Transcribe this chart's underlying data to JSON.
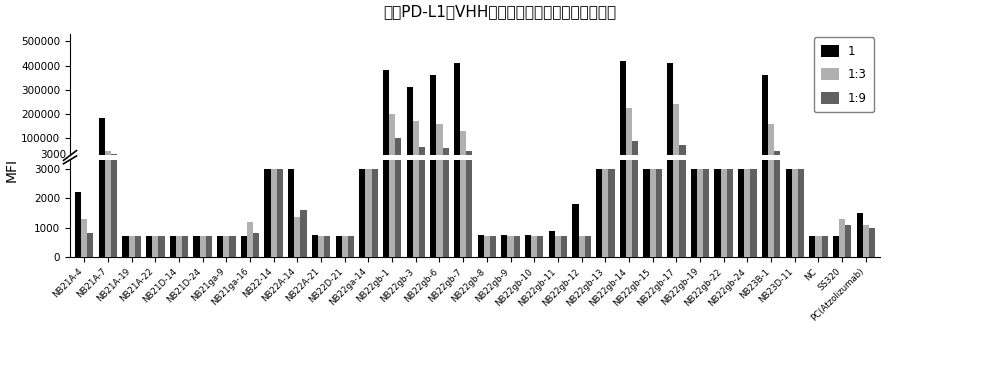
{
  "title": "结合PD-L1的VHH抗体裂解液样本结合亲和力筛选",
  "ylabel": "MFI",
  "categories": [
    "NB21A-4",
    "NB21A-7",
    "NB21A-19",
    "NB21A-22",
    "NB21D-14",
    "NB21D-24",
    "NB21ga-9",
    "NB21ga-16",
    "NB22-14",
    "NB22A-14",
    "NB22A-21",
    "NB22D-21",
    "NB22ga-14",
    "NB22gb-1",
    "NB22gb-3",
    "NB22gb-6",
    "NB22gb-7",
    "NB22gb-8",
    "NB22gb-9",
    "NB22gb-10",
    "NB22gb-11",
    "NB22gb-12",
    "NB22gb-13",
    "NB22gb-14",
    "NB22gb-15",
    "NB22gb-17",
    "NB22gb-19",
    "NB22gb-22",
    "NB22gb-24",
    "NB23B-1",
    "NB23D-11",
    "NC",
    "SS320",
    "PC(Atzolizumab)"
  ],
  "series": {
    "1": [
      2200,
      185000,
      700,
      700,
      700,
      700,
      700,
      700,
      3000,
      3000,
      750,
      700,
      3000,
      380000,
      310000,
      360000,
      410000,
      750,
      750,
      750,
      900,
      1800,
      3000,
      420000,
      3000,
      410000,
      3000,
      3000,
      3000,
      360000,
      3000,
      700,
      700,
      1500
    ],
    "1:3": [
      1300,
      50000,
      700,
      700,
      700,
      700,
      700,
      1200,
      3000,
      1350,
      700,
      700,
      3000,
      200000,
      170000,
      160000,
      130000,
      700,
      700,
      700,
      700,
      700,
      3000,
      225000,
      3000,
      240000,
      3000,
      3000,
      3000,
      160000,
      3000,
      700,
      1300,
      1100
    ],
    "1:9": [
      800,
      35000,
      700,
      700,
      700,
      700,
      700,
      800,
      3000,
      1600,
      700,
      700,
      3000,
      100000,
      65000,
      60000,
      50000,
      700,
      700,
      700,
      700,
      700,
      3000,
      90000,
      3000,
      75000,
      3000,
      3000,
      3000,
      50000,
      3000,
      700,
      1100,
      1000
    ]
  },
  "colors": {
    "1": "#000000",
    "1:3": "#b0b0b0",
    "1:9": "#606060"
  },
  "legend_labels": [
    "1",
    "1:3",
    "1:9"
  ],
  "background_color": "#ffffff"
}
